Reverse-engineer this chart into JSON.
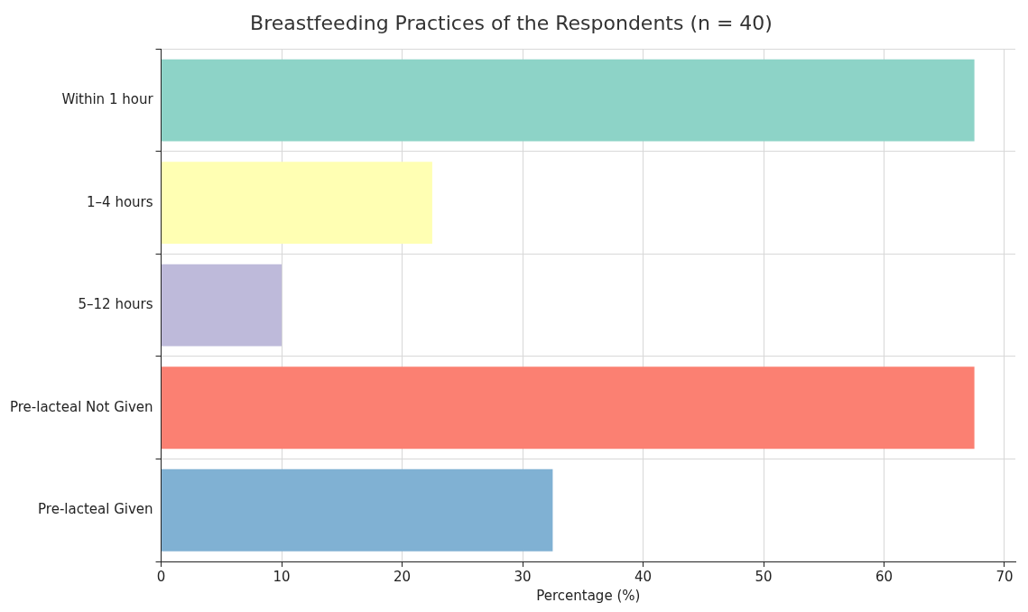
{
  "chart_data": {
    "type": "bar",
    "orientation": "horizontal",
    "title": "Breastfeeding Practices of the Respondents (n = 40)",
    "xlabel": "Percentage (%)",
    "categories": [
      "Within 1 hour",
      "1–4 hours",
      "5–12 hours",
      "Pre-lacteal Not Given",
      "Pre-lacteal Given"
    ],
    "values": [
      67.5,
      22.5,
      10,
      67.5,
      32.5
    ],
    "colors": [
      "#8dd3c7",
      "#ffffb3",
      "#bebada",
      "#fb8072",
      "#80b1d3"
    ],
    "xlim": [
      0,
      70.9
    ],
    "xticks": [
      0,
      10,
      20,
      30,
      40,
      50,
      60,
      70
    ],
    "grid": true,
    "legend": false
  }
}
